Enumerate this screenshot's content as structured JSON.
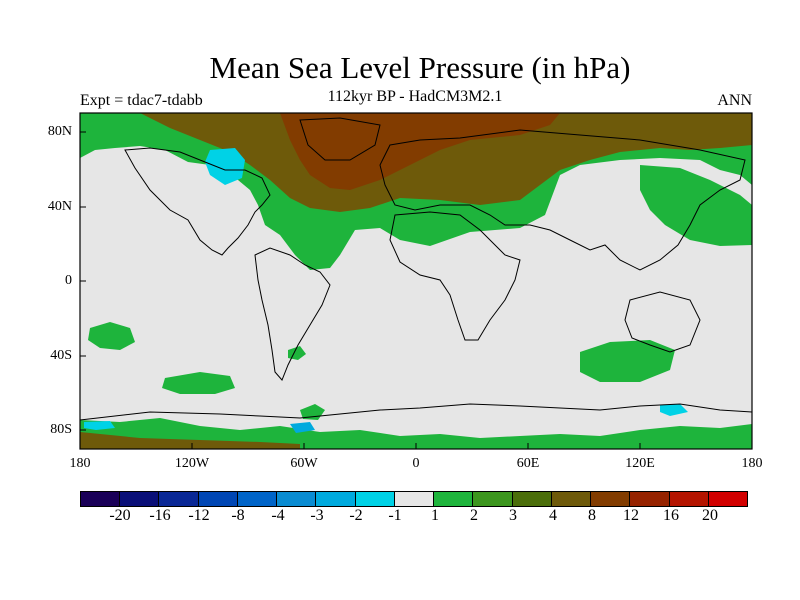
{
  "title": "Mean Sea Level Pressure (in hPa)",
  "experiment": "Expt = tdac7-tdabb",
  "subtitle": "112kyr BP - HadCM3M2.1",
  "season": "ANN",
  "y_ticks": [
    "80N",
    "40N",
    "0",
    "40S",
    "80S"
  ],
  "x_ticks": [
    "180",
    "120W",
    "60W",
    "0",
    "60E",
    "120E",
    "180"
  ],
  "colorbar": {
    "colors": [
      "#1a0058",
      "#0a0f78",
      "#0a2896",
      "#0046b4",
      "#0064c8",
      "#0a8cd2",
      "#00aade",
      "#00d2e6",
      "#e6e6e6",
      "#1eb43c",
      "#3c961e",
      "#4b6e0a",
      "#6e5a0a",
      "#823c00",
      "#962300",
      "#b41400",
      "#d20000"
    ],
    "labels": [
      "-20",
      "-16",
      "-12",
      "-8",
      "-4",
      "-3",
      "-2",
      "-1",
      "1",
      "2",
      "3",
      "4",
      "8",
      "12",
      "16",
      "20"
    ]
  },
  "map_colors": {
    "ocean": "#e6e6e6",
    "green": "#1eb43c",
    "darkgreen": "#3c961e",
    "olive": "#6e5a0a",
    "brown": "#823c00",
    "cyan": "#00d2e6",
    "blue": "#00aade"
  }
}
